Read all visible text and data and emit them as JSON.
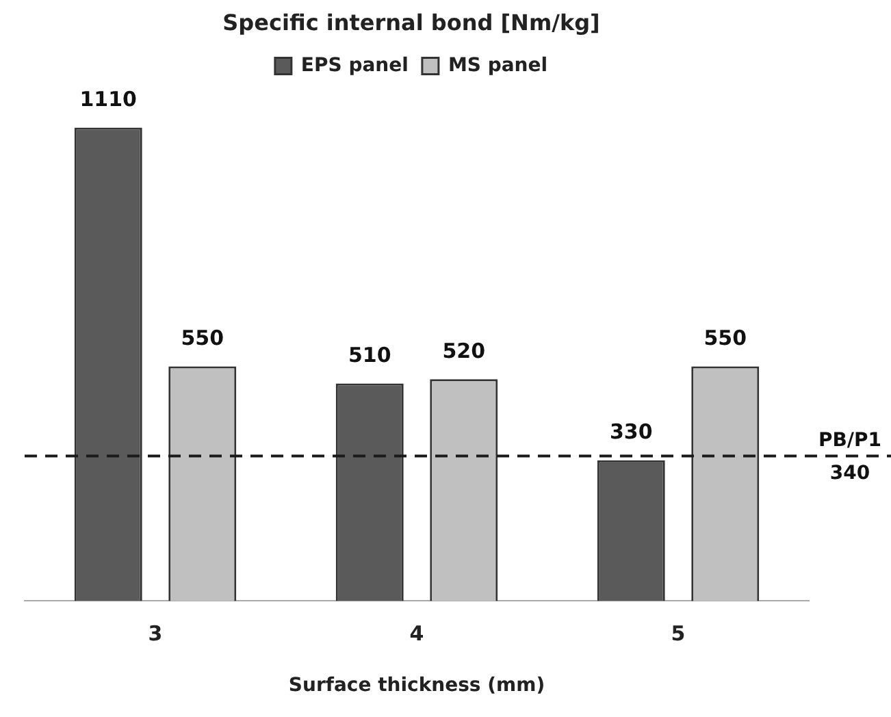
{
  "chart_data": {
    "type": "bar",
    "title": "Specific internal bond [Nm/kg]",
    "xlabel": "Surface thickness (mm)",
    "categories": [
      "3",
      "4",
      "5"
    ],
    "series": [
      {
        "name": "EPS panel",
        "color": "#5a5a5a",
        "values": [
          1110,
          510,
          330
        ]
      },
      {
        "name": "MS panel",
        "color": "#c0c0c0",
        "values": [
          550,
          520,
          550
        ]
      }
    ],
    "ref_lines": [
      {
        "axis": "y",
        "value": 340,
        "label": "PB/P1",
        "line_style": "dashed",
        "color": "#1a1a1a"
      }
    ],
    "annotations": [
      {
        "text": "340",
        "y": 340
      }
    ],
    "data_labels": true,
    "legend": "top",
    "grid": false
  }
}
